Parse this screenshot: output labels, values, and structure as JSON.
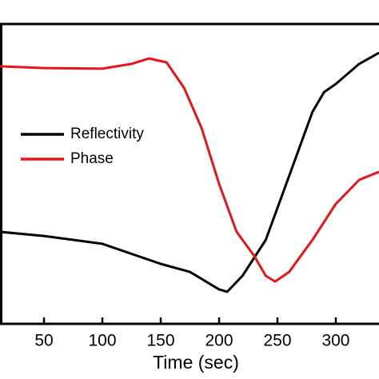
{
  "chart_data": {
    "type": "line",
    "xlabel": "Time (sec)",
    "x": [
      12,
      50,
      100,
      125,
      140,
      150,
      155,
      170,
      175,
      185,
      200,
      207,
      215,
      220,
      230,
      240,
      248,
      260,
      280,
      290,
      300,
      320,
      337
    ],
    "series": [
      {
        "name": "Reflectivity",
        "color": "#000000",
        "values": [
          30.7,
          29.3,
          26.7,
          null,
          null,
          20,
          null,
          null,
          17.3,
          null,
          11.5,
          10.7,
          null,
          16,
          null,
          28,
          null,
          49.3,
          70.7,
          77.3,
          80,
          86.7,
          90.4
        ]
      },
      {
        "name": "Phase",
        "color": "#e8141b",
        "values": [
          85.9,
          85.3,
          85.1,
          86.7,
          88.5,
          null,
          87.2,
          78.7,
          null,
          65.3,
          46.7,
          null,
          30.7,
          null,
          22.7,
          16,
          14.1,
          17.3,
          28,
          null,
          40,
          48,
          50.7
        ]
      }
    ],
    "xlim": [
      12.3,
      337
    ],
    "xticks": [
      50,
      100,
      150,
      200,
      250,
      300
    ],
    "ylim": [
      0,
      100
    ],
    "legend": "left"
  }
}
